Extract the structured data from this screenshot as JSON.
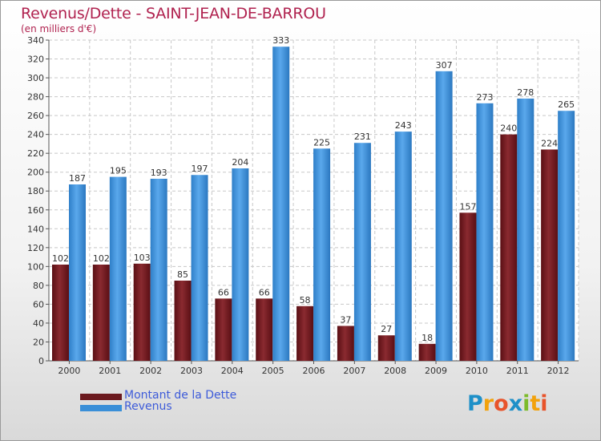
{
  "title": "Revenus/Dette - SAINT-JEAN-DE-BARROU",
  "subtitle": "(en milliers d'€)",
  "chart_data": {
    "type": "bar",
    "categories": [
      "2000",
      "2001",
      "2002",
      "2003",
      "2004",
      "2005",
      "2006",
      "2007",
      "2008",
      "2009",
      "2010",
      "2011",
      "2012"
    ],
    "series": [
      {
        "name": "Montant de la Dette",
        "color": "#6b1a1f",
        "values": [
          102,
          102,
          103,
          85,
          66,
          66,
          58,
          37,
          27,
          18,
          157,
          240,
          224
        ]
      },
      {
        "name": "Revenus",
        "color": "#3a8fd8",
        "values": [
          187,
          195,
          193,
          197,
          204,
          333,
          225,
          231,
          243,
          307,
          273,
          278,
          265
        ]
      }
    ],
    "ylim": [
      0,
      340
    ],
    "yticks": [
      0,
      20,
      40,
      60,
      80,
      100,
      120,
      140,
      160,
      180,
      200,
      220,
      240,
      260,
      280,
      300,
      320,
      340
    ],
    "grid": true,
    "legend": "bottom-left"
  },
  "logo": {
    "letters": [
      "P",
      "r",
      "o",
      "x",
      "i",
      "t",
      "i"
    ],
    "colors": [
      "#1e90c8",
      "#f2a20c",
      "#e8532a",
      "#1e90c8",
      "#7dbb2a",
      "#f2a20c",
      "#e8532a"
    ]
  }
}
